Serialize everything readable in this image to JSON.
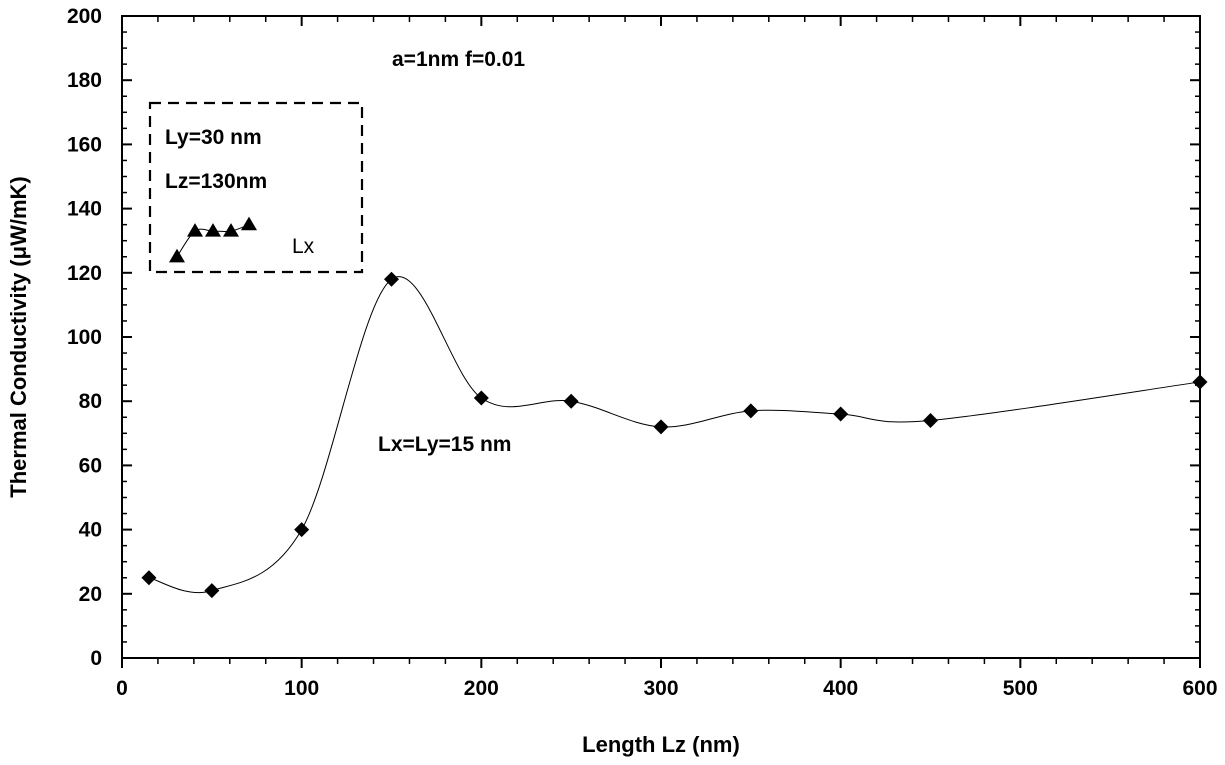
{
  "chart_data": {
    "type": "scatter",
    "title": "",
    "xlabel": "Length Lz  (nm)",
    "ylabel": "Thermal Conductivity (μW/mK)",
    "xlim": [
      0,
      600
    ],
    "ylim": [
      0,
      200
    ],
    "x_ticks": [
      0,
      100,
      200,
      300,
      400,
      500,
      600
    ],
    "y_ticks": [
      0,
      20,
      40,
      60,
      80,
      100,
      120,
      140,
      160,
      180,
      200
    ],
    "grid": false,
    "series": [
      {
        "marker": "diamond",
        "smooth_line": true,
        "x": [
          15,
          50,
          100,
          150,
          200,
          250,
          300,
          350,
          400,
          450,
          600
        ],
        "y": [
          25,
          21,
          40,
          118,
          81,
          80,
          72,
          77,
          76,
          74,
          86
        ]
      }
    ],
    "annotations": [
      {
        "text": "a=1nm f=0.01"
      },
      {
        "text": "Lx=Ly=15 nm"
      }
    ],
    "inset": {
      "lines": [
        "Ly=30 nm",
        "Lz=130nm"
      ],
      "axis_label": "Lx",
      "marker": "triangle",
      "relative_values": [
        125,
        133,
        133,
        133,
        135
      ]
    }
  }
}
